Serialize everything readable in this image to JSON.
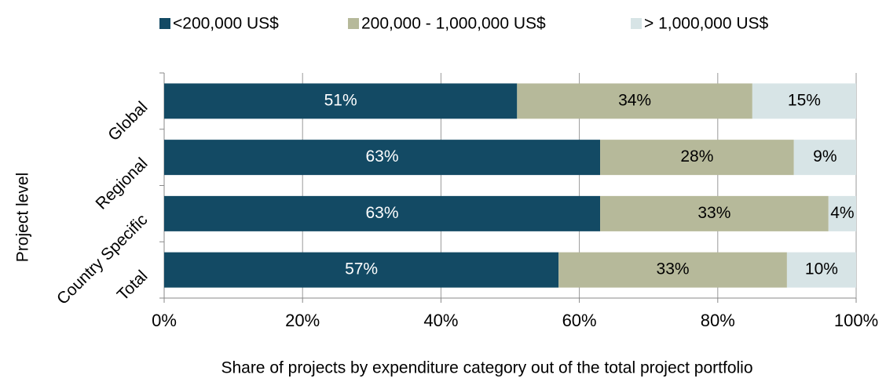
{
  "chart_data": {
    "type": "stacked-bar-horizontal",
    "xlabel": "Share of projects by expenditure category out of the total project portfolio",
    "ylabel": "Project level",
    "categories": [
      "Global",
      "Regional",
      "Country Specific",
      "Total"
    ],
    "series": [
      {
        "name": "<200,000 US$",
        "color": "#134a64",
        "values": [
          51,
          63,
          63,
          57
        ],
        "value_labels": [
          "51%",
          "63%",
          "63%",
          "57%"
        ]
      },
      {
        "name": "200,000 - 1,000,000 US$",
        "color": "#b6b99a",
        "values": [
          34,
          28,
          33,
          33
        ],
        "value_labels": [
          "34%",
          "28%",
          "33%",
          "33%"
        ]
      },
      {
        "name": "> 1,000,000 US$",
        "color": "#d7e4e6",
        "values": [
          15,
          9,
          4,
          10
        ],
        "value_labels": [
          "15%",
          "9%",
          "4%",
          "10%"
        ]
      }
    ],
    "xlim": [
      0,
      100
    ],
    "xticks": [
      {
        "value": 0,
        "label": "0%"
      },
      {
        "value": 20,
        "label": "20%"
      },
      {
        "value": 40,
        "label": "40%"
      },
      {
        "value": 60,
        "label": "60%"
      },
      {
        "value": 80,
        "label": "80%"
      },
      {
        "value": 100,
        "label": "100%"
      }
    ],
    "grid": true,
    "legend": "top"
  }
}
